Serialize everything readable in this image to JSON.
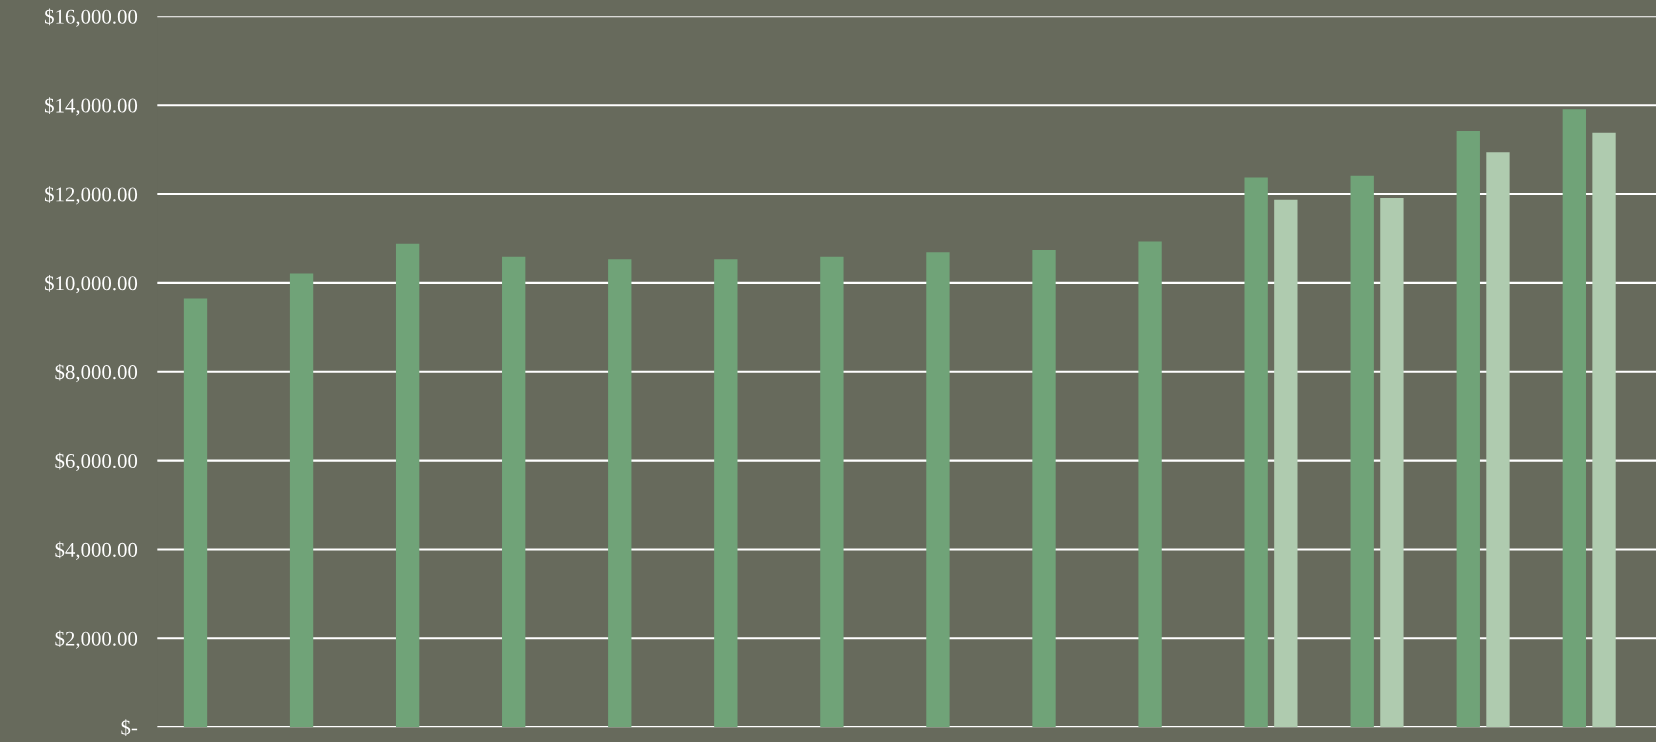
{
  "chart_data": {
    "type": "bar",
    "categories": [
      null,
      null,
      null,
      null,
      null,
      null,
      null,
      null,
      null,
      null,
      null,
      null,
      null,
      null
    ],
    "series": [
      {
        "color": "#70a378",
        "values": [
          9650,
          10210,
          10880,
          10590,
          10530,
          10530,
          10590,
          10690,
          10740,
          10930,
          12370,
          12410,
          13420,
          13910
        ]
      },
      {
        "color": "#afcbaf",
        "values": [
          null,
          null,
          null,
          null,
          null,
          null,
          null,
          null,
          null,
          null,
          11870,
          11910,
          12940,
          13380
        ]
      }
    ],
    "ylim": [
      0,
      16000
    ],
    "yticks": [
      {
        "value": 0,
        "label": "$-"
      },
      {
        "value": 2000,
        "label": "$2,000.00"
      },
      {
        "value": 4000,
        "label": "$4,000.00"
      },
      {
        "value": 6000,
        "label": "$6,000.00"
      },
      {
        "value": 8000,
        "label": "$8,000.00"
      },
      {
        "value": 10000,
        "label": "$10,000.00"
      },
      {
        "value": 12000,
        "label": "$12,000.00"
      },
      {
        "value": 14000,
        "label": "$14,000.00"
      },
      {
        "value": 16000,
        "label": "$16,000.00"
      }
    ],
    "grid": "y"
  }
}
